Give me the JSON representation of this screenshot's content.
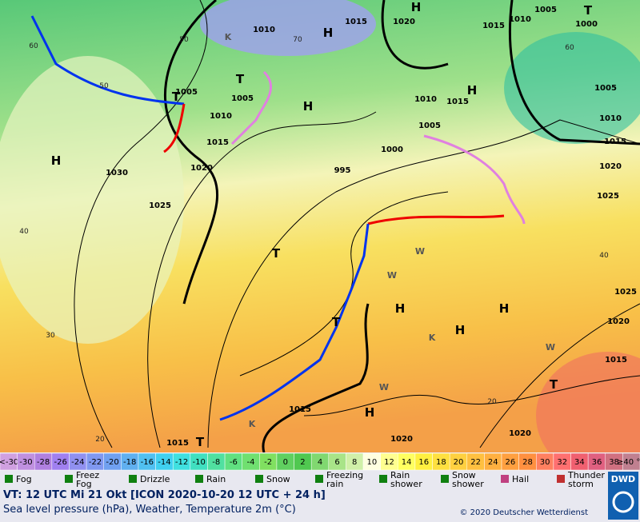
{
  "map": {
    "pressure_labels": [
      "1010",
      "1015",
      "1020",
      "1015",
      "1010",
      "1005",
      "1000",
      "1005",
      "1005",
      "1010",
      "1015",
      "1020",
      "1030",
      "1025",
      "995",
      "1000",
      "1005",
      "1010",
      "1015",
      "1005",
      "1010",
      "1015",
      "1020",
      "1025",
      "1025",
      "1020",
      "1015",
      "1015",
      "1020",
      "1020",
      "1015"
    ],
    "contour_labels": [
      "50",
      "70",
      "60",
      "50",
      "40",
      "30",
      "20",
      "40",
      "20",
      "60"
    ],
    "pressure_systems": [
      "H",
      "T",
      "H",
      "H",
      "H",
      "H",
      "T",
      "K",
      "T",
      "H",
      "H",
      "H",
      "H",
      "T",
      "T",
      "T",
      "T",
      "W",
      "W",
      "K",
      "W",
      "W",
      "K"
    ]
  },
  "legend": {
    "temperature_scale": [
      "<-30",
      "-30",
      "-28",
      "-26",
      "-24",
      "-22",
      "-20",
      "-18",
      "-16",
      "-14",
      "-12",
      "-10",
      "-8",
      "-6",
      "-4",
      "-2",
      "0",
      "2",
      "4",
      "6",
      "8",
      "10",
      "12",
      "14",
      "16",
      "18",
      "20",
      "22",
      "24",
      "26",
      "28",
      "30",
      "32",
      "34",
      "36",
      "38",
      "≥40 °C"
    ],
    "temperature_colors": [
      "#d0a0e0",
      "#c090e0",
      "#b080e0",
      "#a080f0",
      "#9090f0",
      "#8098f0",
      "#70a0f0",
      "#60b0f0",
      "#50c0f0",
      "#40d0f0",
      "#40e0e0",
      "#40e0c0",
      "#50e0a0",
      "#60e080",
      "#70e070",
      "#80e060",
      "#60d060",
      "#50c850",
      "#80d870",
      "#a8e488",
      "#d0f0a8",
      "#ffffe0",
      "#ffff90",
      "#ffff60",
      "#fff040",
      "#ffe040",
      "#ffd040",
      "#ffc040",
      "#ffb040",
      "#ffa040",
      "#ff9040",
      "#ff8060",
      "#ff7070",
      "#f06070",
      "#e06080",
      "#d07080",
      "#c08090"
    ],
    "weather": [
      "Fog",
      "Freez\nFog",
      "Drizzle",
      "Rain",
      "Snow",
      "Freezing\nrain",
      "Rain\nshower",
      "Snow\nshower",
      "Hail",
      "Thunder\nstorm"
    ]
  },
  "footer": {
    "valid_time": "VT: 12 UTC Mi  21 Okt [ICON 2020-10-20  12 UTC + 24 h]",
    "description": "Sea level pressure (hPa), Weather, Temperature 2m (°C)",
    "copyright": "© 2020 Deutscher Wetterdienst",
    "logo": "DWD"
  }
}
